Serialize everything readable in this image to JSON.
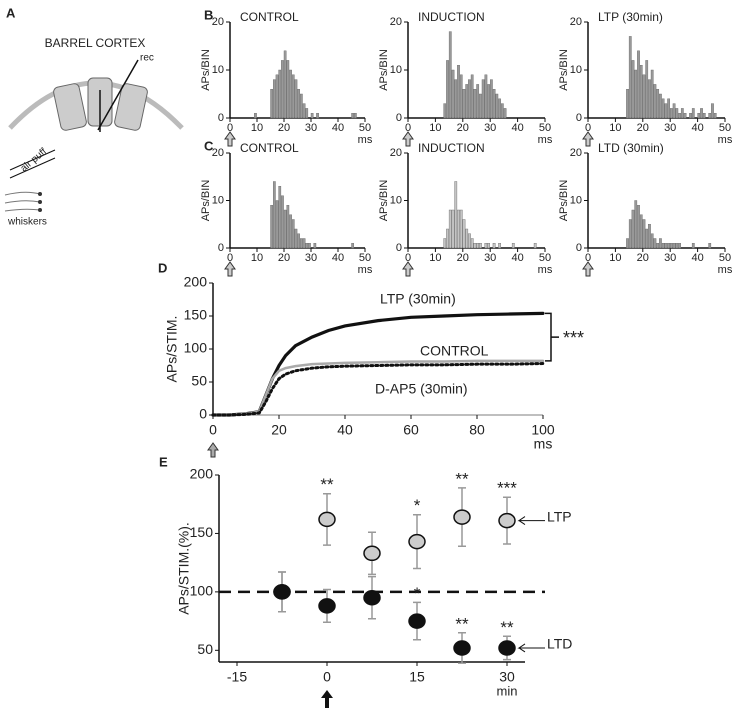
{
  "panel_a": {
    "label": "A",
    "title": "BARREL CORTEX",
    "electrode": "rec",
    "stimulus": "air puff",
    "whiskers": "whiskers"
  },
  "chart_data": [
    {
      "type": "histogram",
      "panel_label": "B",
      "title": "CONTROL",
      "ylabel": "APs/BIN",
      "xlabel": "ms",
      "color": "#999999",
      "bins": [
        8,
        9,
        10,
        11,
        12,
        13,
        14,
        15,
        16,
        17,
        18,
        19,
        20,
        21,
        22,
        23,
        24,
        25,
        26,
        27,
        28,
        29,
        30,
        31,
        32,
        33,
        34,
        35,
        36,
        37,
        38,
        39,
        40,
        41,
        42,
        43,
        44,
        45,
        46,
        47,
        48
      ],
      "values": [
        0,
        1,
        0,
        0,
        0,
        0,
        0,
        6,
        8,
        9,
        10,
        12,
        14,
        12,
        10,
        9,
        8,
        6,
        5,
        3,
        2,
        0,
        1,
        0,
        1,
        0,
        0,
        0,
        0,
        0,
        0,
        0,
        0,
        0,
        0,
        0,
        0,
        1,
        1,
        0
      ],
      "xlim": [
        0,
        50
      ],
      "xticks": [
        0,
        10,
        20,
        30,
        40,
        50
      ],
      "ylim": [
        0,
        20
      ],
      "yticks": [
        0,
        10,
        20
      ]
    },
    {
      "type": "histogram",
      "title": "INDUCTION",
      "ylabel": "APs/BIN",
      "xlabel": "ms",
      "color": "#999999",
      "bins": [
        8,
        9,
        10,
        11,
        12,
        13,
        14,
        15,
        16,
        17,
        18,
        19,
        20,
        21,
        22,
        23,
        24,
        25,
        26,
        27,
        28,
        29,
        30,
        31,
        32,
        33,
        34,
        35,
        36,
        37,
        38,
        39,
        40,
        41,
        42,
        43,
        44,
        45,
        46,
        47,
        48
      ],
      "values": [
        0,
        0,
        0,
        0,
        0,
        3,
        12,
        18,
        10,
        8,
        11,
        9,
        6,
        7,
        8,
        9,
        6,
        7,
        5,
        8,
        9,
        7,
        8,
        6,
        5,
        4,
        3,
        2,
        0,
        0,
        0,
        0,
        0,
        0,
        0,
        0,
        0,
        0,
        0,
        0
      ],
      "xlim": [
        0,
        50
      ],
      "xticks": [
        0,
        10,
        20,
        30,
        40,
        50
      ],
      "ylim": [
        0,
        20
      ],
      "yticks": [
        0,
        10,
        20
      ]
    },
    {
      "type": "histogram",
      "title": "LTP (30min)",
      "ylabel": "APs/BIN",
      "xlabel": "ms",
      "color": "#999999",
      "bins": [
        8,
        9,
        10,
        11,
        12,
        13,
        14,
        15,
        16,
        17,
        18,
        19,
        20,
        21,
        22,
        23,
        24,
        25,
        26,
        27,
        28,
        29,
        30,
        31,
        32,
        33,
        34,
        35,
        36,
        37,
        38,
        39,
        40,
        41,
        42,
        43,
        44,
        45,
        46,
        47,
        48
      ],
      "values": [
        0,
        0,
        0,
        0,
        0,
        0,
        6,
        17,
        12,
        10,
        14,
        11,
        9,
        12,
        8,
        10,
        7,
        6,
        5,
        4,
        3,
        4,
        2,
        3,
        2,
        1,
        2,
        1,
        0,
        1,
        2,
        0,
        1,
        2,
        1,
        0,
        1,
        3,
        1,
        0
      ],
      "xlim": [
        0,
        50
      ],
      "xticks": [
        0,
        10,
        20,
        30,
        40,
        50
      ],
      "ylim": [
        0,
        20
      ],
      "yticks": [
        0,
        10,
        20
      ]
    },
    {
      "type": "histogram",
      "panel_label": "C",
      "title": "CONTROL",
      "ylabel": "APs/BIN",
      "xlabel": "ms",
      "color": "#999999",
      "bins": [
        8,
        9,
        10,
        11,
        12,
        13,
        14,
        15,
        16,
        17,
        18,
        19,
        20,
        21,
        22,
        23,
        24,
        25,
        26,
        27,
        28,
        29,
        30,
        31,
        32,
        33,
        34,
        35,
        36,
        37,
        38,
        39,
        40,
        41,
        42,
        43,
        44,
        45,
        46,
        47,
        48
      ],
      "values": [
        0,
        0,
        0,
        0,
        0,
        0,
        0,
        9,
        14,
        10,
        13,
        11,
        8,
        9,
        7,
        6,
        4,
        3,
        2,
        2,
        1,
        1,
        0,
        1,
        0,
        0,
        0,
        0,
        0,
        0,
        0,
        0,
        0,
        0,
        0,
        0,
        0,
        1,
        0,
        0
      ],
      "xlim": [
        0,
        50
      ],
      "xticks": [
        0,
        10,
        20,
        30,
        40,
        50
      ],
      "ylim": [
        0,
        20
      ],
      "yticks": [
        0,
        10,
        20
      ]
    },
    {
      "type": "histogram",
      "title": "INDUCTION",
      "ylabel": "APs/BIN",
      "xlabel": "ms",
      "color": "#c4c4c4",
      "bins": [
        8,
        9,
        10,
        11,
        12,
        13,
        14,
        15,
        16,
        17,
        18,
        19,
        20,
        21,
        22,
        23,
        24,
        25,
        26,
        27,
        28,
        29,
        30,
        31,
        32,
        33,
        34,
        35,
        36,
        37,
        38,
        39,
        40,
        41,
        42,
        43,
        44,
        45,
        46,
        47,
        48
      ],
      "values": [
        0,
        0,
        0,
        0,
        0,
        2,
        4,
        8,
        8,
        14,
        8,
        8,
        6,
        4,
        3,
        2,
        1,
        1,
        1,
        0,
        1,
        1,
        0,
        1,
        0,
        1,
        0,
        0,
        0,
        0,
        1,
        0,
        0,
        0,
        0,
        0,
        0,
        0,
        1,
        0
      ],
      "xlim": [
        0,
        50
      ],
      "xticks": [
        0,
        10,
        20,
        30,
        40,
        50
      ],
      "ylim": [
        0,
        20
      ],
      "yticks": [
        0,
        10,
        20
      ]
    },
    {
      "type": "histogram",
      "title": "LTD (30min)",
      "ylabel": "APs/BIN",
      "xlabel": "ms",
      "color": "#999999",
      "bins": [
        8,
        9,
        10,
        11,
        12,
        13,
        14,
        15,
        16,
        17,
        18,
        19,
        20,
        21,
        22,
        23,
        24,
        25,
        26,
        27,
        28,
        29,
        30,
        31,
        32,
        33,
        34,
        35,
        36,
        37,
        38,
        39,
        40,
        41,
        42,
        43,
        44,
        45,
        46,
        47,
        48
      ],
      "values": [
        0,
        0,
        0,
        0,
        0,
        0,
        2,
        6,
        8,
        10,
        9,
        7,
        6,
        4,
        5,
        3,
        2,
        1,
        2,
        1,
        1,
        1,
        1,
        1,
        1,
        1,
        0,
        0,
        0,
        0,
        1,
        0,
        0,
        0,
        0,
        0,
        1,
        0,
        0,
        0
      ],
      "xlim": [
        0,
        50
      ],
      "xticks": [
        0,
        10,
        20,
        30,
        40,
        50
      ],
      "ylim": [
        0,
        20
      ],
      "yticks": [
        0,
        10,
        20
      ]
    },
    {
      "type": "line",
      "panel_label": "D",
      "ylabel": "APs/STIM.",
      "xlabel": "ms",
      "annotation": "***",
      "x": [
        0,
        5,
        10,
        14,
        16,
        18,
        20,
        22,
        25,
        30,
        35,
        40,
        50,
        60,
        70,
        80,
        90,
        100
      ],
      "series": [
        {
          "name": "LTP (30min)",
          "color": "#111111",
          "style": "solid",
          "values": [
            0,
            0,
            2,
            5,
            30,
            55,
            75,
            90,
            105,
            118,
            128,
            135,
            143,
            148,
            150,
            152,
            153,
            154
          ]
        },
        {
          "name": "CONTROL",
          "color": "#aaaaaa",
          "style": "solid",
          "values": [
            0,
            0,
            2,
            5,
            30,
            55,
            67,
            71,
            74,
            77,
            78,
            79,
            80,
            81,
            81,
            82,
            82,
            82
          ]
        },
        {
          "name": "D-AP5 (30min)",
          "color": "#111111",
          "style": "dotted",
          "values": [
            0,
            0,
            1,
            3,
            20,
            40,
            55,
            62,
            67,
            71,
            73,
            74,
            75,
            76,
            76,
            77,
            77,
            78
          ]
        }
      ],
      "xlim": [
        0,
        100
      ],
      "xticks": [
        0,
        20,
        40,
        60,
        80,
        100
      ],
      "ylim": [
        0,
        200
      ],
      "yticks": [
        0,
        50,
        100,
        150,
        200
      ]
    },
    {
      "type": "scatter",
      "panel_label": "E",
      "ylabel": "APs/STIM.(%).",
      "xlabel": "min",
      "reference_line": 100,
      "x": [
        -7.5,
        0,
        7.5,
        15,
        22.5,
        30
      ],
      "series": [
        {
          "name": "LTP",
          "color": "#cccccc",
          "values": [
            100,
            162,
            133,
            143,
            164,
            161
          ],
          "errors": [
            17,
            22,
            18,
            23,
            25,
            20
          ],
          "significance": [
            null,
            "**",
            null,
            "*",
            "**",
            "***"
          ]
        },
        {
          "name": "LTD",
          "color": "#111111",
          "values": [
            100,
            88,
            95,
            75,
            52,
            52
          ],
          "errors": [
            17,
            14,
            18,
            16,
            13,
            10
          ],
          "significance": [
            null,
            null,
            null,
            "*",
            "**",
            "**"
          ]
        }
      ],
      "xlim": [
        -18,
        33
      ],
      "xticks": [
        -15,
        0,
        15,
        30
      ],
      "ylim": [
        40,
        200
      ],
      "yticks": [
        50,
        100,
        150,
        200
      ]
    }
  ]
}
